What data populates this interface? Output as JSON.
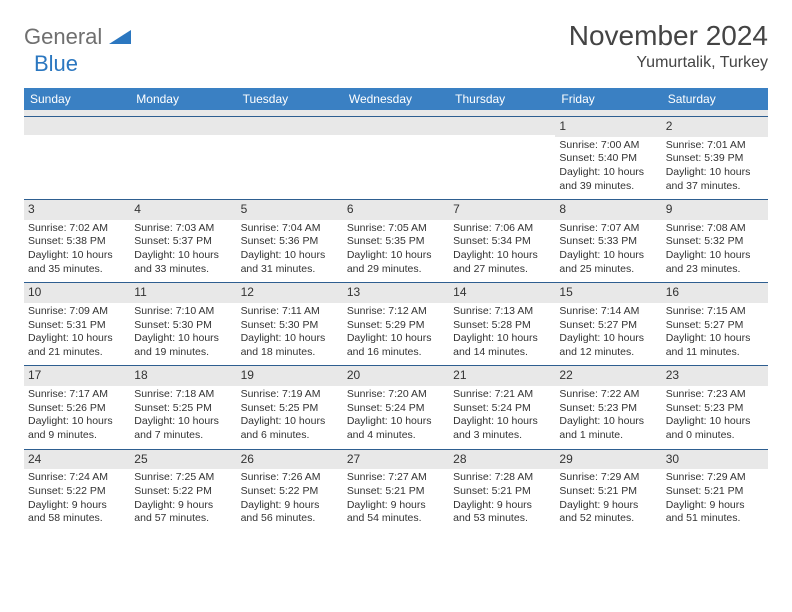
{
  "brand": {
    "word1": "General",
    "word2": "Blue"
  },
  "title": "November 2024",
  "location": "Yumurtalik, Turkey",
  "colors": {
    "header_bg": "#3a80c3",
    "header_text": "#ffffff",
    "daynum_bg": "#e8e8e8",
    "rule": "#2e5e90",
    "text": "#333333",
    "brand_gray": "#6f6f6f",
    "brand_blue": "#2b77c0"
  },
  "day_names": [
    "Sunday",
    "Monday",
    "Tuesday",
    "Wednesday",
    "Thursday",
    "Friday",
    "Saturday"
  ],
  "weeks": [
    [
      {
        "n": "",
        "sr": "",
        "ss": "",
        "dl": ""
      },
      {
        "n": "",
        "sr": "",
        "ss": "",
        "dl": ""
      },
      {
        "n": "",
        "sr": "",
        "ss": "",
        "dl": ""
      },
      {
        "n": "",
        "sr": "",
        "ss": "",
        "dl": ""
      },
      {
        "n": "",
        "sr": "",
        "ss": "",
        "dl": ""
      },
      {
        "n": "1",
        "sr": "Sunrise: 7:00 AM",
        "ss": "Sunset: 5:40 PM",
        "dl": "Daylight: 10 hours and 39 minutes."
      },
      {
        "n": "2",
        "sr": "Sunrise: 7:01 AM",
        "ss": "Sunset: 5:39 PM",
        "dl": "Daylight: 10 hours and 37 minutes."
      }
    ],
    [
      {
        "n": "3",
        "sr": "Sunrise: 7:02 AM",
        "ss": "Sunset: 5:38 PM",
        "dl": "Daylight: 10 hours and 35 minutes."
      },
      {
        "n": "4",
        "sr": "Sunrise: 7:03 AM",
        "ss": "Sunset: 5:37 PM",
        "dl": "Daylight: 10 hours and 33 minutes."
      },
      {
        "n": "5",
        "sr": "Sunrise: 7:04 AM",
        "ss": "Sunset: 5:36 PM",
        "dl": "Daylight: 10 hours and 31 minutes."
      },
      {
        "n": "6",
        "sr": "Sunrise: 7:05 AM",
        "ss": "Sunset: 5:35 PM",
        "dl": "Daylight: 10 hours and 29 minutes."
      },
      {
        "n": "7",
        "sr": "Sunrise: 7:06 AM",
        "ss": "Sunset: 5:34 PM",
        "dl": "Daylight: 10 hours and 27 minutes."
      },
      {
        "n": "8",
        "sr": "Sunrise: 7:07 AM",
        "ss": "Sunset: 5:33 PM",
        "dl": "Daylight: 10 hours and 25 minutes."
      },
      {
        "n": "9",
        "sr": "Sunrise: 7:08 AM",
        "ss": "Sunset: 5:32 PM",
        "dl": "Daylight: 10 hours and 23 minutes."
      }
    ],
    [
      {
        "n": "10",
        "sr": "Sunrise: 7:09 AM",
        "ss": "Sunset: 5:31 PM",
        "dl": "Daylight: 10 hours and 21 minutes."
      },
      {
        "n": "11",
        "sr": "Sunrise: 7:10 AM",
        "ss": "Sunset: 5:30 PM",
        "dl": "Daylight: 10 hours and 19 minutes."
      },
      {
        "n": "12",
        "sr": "Sunrise: 7:11 AM",
        "ss": "Sunset: 5:30 PM",
        "dl": "Daylight: 10 hours and 18 minutes."
      },
      {
        "n": "13",
        "sr": "Sunrise: 7:12 AM",
        "ss": "Sunset: 5:29 PM",
        "dl": "Daylight: 10 hours and 16 minutes."
      },
      {
        "n": "14",
        "sr": "Sunrise: 7:13 AM",
        "ss": "Sunset: 5:28 PM",
        "dl": "Daylight: 10 hours and 14 minutes."
      },
      {
        "n": "15",
        "sr": "Sunrise: 7:14 AM",
        "ss": "Sunset: 5:27 PM",
        "dl": "Daylight: 10 hours and 12 minutes."
      },
      {
        "n": "16",
        "sr": "Sunrise: 7:15 AM",
        "ss": "Sunset: 5:27 PM",
        "dl": "Daylight: 10 hours and 11 minutes."
      }
    ],
    [
      {
        "n": "17",
        "sr": "Sunrise: 7:17 AM",
        "ss": "Sunset: 5:26 PM",
        "dl": "Daylight: 10 hours and 9 minutes."
      },
      {
        "n": "18",
        "sr": "Sunrise: 7:18 AM",
        "ss": "Sunset: 5:25 PM",
        "dl": "Daylight: 10 hours and 7 minutes."
      },
      {
        "n": "19",
        "sr": "Sunrise: 7:19 AM",
        "ss": "Sunset: 5:25 PM",
        "dl": "Daylight: 10 hours and 6 minutes."
      },
      {
        "n": "20",
        "sr": "Sunrise: 7:20 AM",
        "ss": "Sunset: 5:24 PM",
        "dl": "Daylight: 10 hours and 4 minutes."
      },
      {
        "n": "21",
        "sr": "Sunrise: 7:21 AM",
        "ss": "Sunset: 5:24 PM",
        "dl": "Daylight: 10 hours and 3 minutes."
      },
      {
        "n": "22",
        "sr": "Sunrise: 7:22 AM",
        "ss": "Sunset: 5:23 PM",
        "dl": "Daylight: 10 hours and 1 minute."
      },
      {
        "n": "23",
        "sr": "Sunrise: 7:23 AM",
        "ss": "Sunset: 5:23 PM",
        "dl": "Daylight: 10 hours and 0 minutes."
      }
    ],
    [
      {
        "n": "24",
        "sr": "Sunrise: 7:24 AM",
        "ss": "Sunset: 5:22 PM",
        "dl": "Daylight: 9 hours and 58 minutes."
      },
      {
        "n": "25",
        "sr": "Sunrise: 7:25 AM",
        "ss": "Sunset: 5:22 PM",
        "dl": "Daylight: 9 hours and 57 minutes."
      },
      {
        "n": "26",
        "sr": "Sunrise: 7:26 AM",
        "ss": "Sunset: 5:22 PM",
        "dl": "Daylight: 9 hours and 56 minutes."
      },
      {
        "n": "27",
        "sr": "Sunrise: 7:27 AM",
        "ss": "Sunset: 5:21 PM",
        "dl": "Daylight: 9 hours and 54 minutes."
      },
      {
        "n": "28",
        "sr": "Sunrise: 7:28 AM",
        "ss": "Sunset: 5:21 PM",
        "dl": "Daylight: 9 hours and 53 minutes."
      },
      {
        "n": "29",
        "sr": "Sunrise: 7:29 AM",
        "ss": "Sunset: 5:21 PM",
        "dl": "Daylight: 9 hours and 52 minutes."
      },
      {
        "n": "30",
        "sr": "Sunrise: 7:29 AM",
        "ss": "Sunset: 5:21 PM",
        "dl": "Daylight: 9 hours and 51 minutes."
      }
    ]
  ]
}
